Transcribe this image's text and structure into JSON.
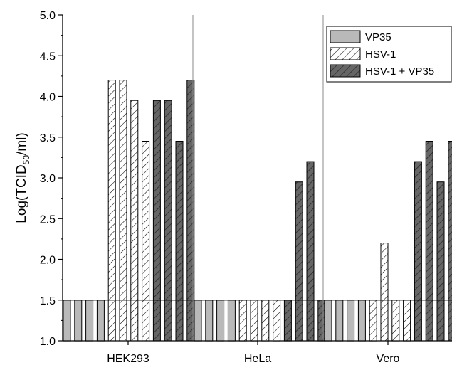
{
  "chart_data": {
    "type": "bar",
    "ylabel": {
      "main": "Log(TCID",
      "sub": "50",
      "tail": "/ml)"
    },
    "ylim": [
      1.0,
      5.0
    ],
    "yticks": [
      "1.0",
      "1.5",
      "2.0",
      "2.5",
      "3.0",
      "3.5",
      "4.0",
      "4.5",
      "5.0"
    ],
    "groups": [
      {
        "name": "HEK293",
        "bars": [
          {
            "series": "VP35",
            "value": 1.5
          },
          {
            "series": "VP35",
            "value": 1.5
          },
          {
            "series": "VP35",
            "value": 1.5
          },
          {
            "series": "VP35",
            "value": 1.5
          },
          {
            "series": "HSV-1",
            "value": 4.2
          },
          {
            "series": "HSV-1",
            "value": 4.2
          },
          {
            "series": "HSV-1",
            "value": 3.95
          },
          {
            "series": "HSV-1",
            "value": 3.45
          },
          {
            "series": "HSV-1 + VP35",
            "value": 3.95
          },
          {
            "series": "HSV-1 + VP35",
            "value": 3.95
          },
          {
            "series": "HSV-1 + VP35",
            "value": 3.45
          },
          {
            "series": "HSV-1 + VP35",
            "value": 4.2
          }
        ]
      },
      {
        "name": "HeLa",
        "bars": [
          {
            "series": "VP35",
            "value": 1.5
          },
          {
            "series": "VP35",
            "value": 1.5
          },
          {
            "series": "VP35",
            "value": 1.5
          },
          {
            "series": "VP35",
            "value": 1.5
          },
          {
            "series": "HSV-1",
            "value": 1.5
          },
          {
            "series": "HSV-1",
            "value": 1.5
          },
          {
            "series": "HSV-1",
            "value": 1.5
          },
          {
            "series": "HSV-1",
            "value": 1.5
          },
          {
            "series": "HSV-1 + VP35",
            "value": 1.5
          },
          {
            "series": "HSV-1 + VP35",
            "value": 2.95
          },
          {
            "series": "HSV-1 + VP35",
            "value": 3.2
          },
          {
            "series": "HSV-1 + VP35",
            "value": 1.5
          }
        ]
      },
      {
        "name": "Vero",
        "bars": [
          {
            "series": "VP35",
            "value": 1.5
          },
          {
            "series": "VP35",
            "value": 1.5
          },
          {
            "series": "VP35",
            "value": 1.5
          },
          {
            "series": "VP35",
            "value": 1.5
          },
          {
            "series": "HSV-1",
            "value": 1.5
          },
          {
            "series": "HSV-1",
            "value": 2.2
          },
          {
            "series": "HSV-1",
            "value": 1.5
          },
          {
            "series": "HSV-1",
            "value": 1.5
          },
          {
            "series": "HSV-1 + VP35",
            "value": 3.2
          },
          {
            "series": "HSV-1 + VP35",
            "value": 3.45
          },
          {
            "series": "HSV-1 + VP35",
            "value": 2.95
          },
          {
            "series": "HSV-1 + VP35",
            "value": 3.45
          }
        ]
      }
    ],
    "legend": {
      "position": "top-right",
      "entries": [
        {
          "name": "VP35",
          "fill": "#b9b9b9",
          "pattern": "solid"
        },
        {
          "name": "HSV-1",
          "fill": "#ffffff",
          "pattern": "hatch"
        },
        {
          "name": "HSV-1 + VP35",
          "fill": "#666666",
          "pattern": "hatch"
        }
      ]
    },
    "grid": false,
    "reference_line": 1.5,
    "group_separators": true
  }
}
